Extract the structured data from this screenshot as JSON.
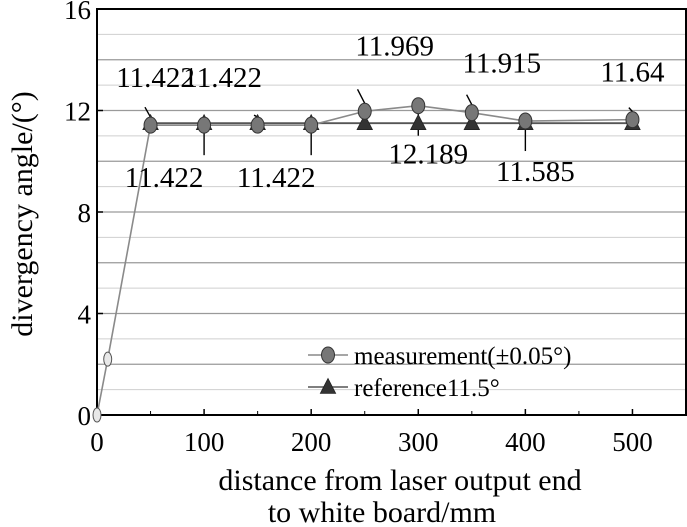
{
  "chart_data": {
    "type": "line",
    "title": "",
    "xlabel_lines": [
      "distance from laser output end",
      "to white board/mm"
    ],
    "ylabel": "divergency angle/(°)",
    "xlim": [
      0,
      550
    ],
    "ylim": [
      0,
      16
    ],
    "xticks": [
      0,
      100,
      200,
      300,
      400,
      500
    ],
    "yticks": [
      0,
      4,
      8,
      12,
      16
    ],
    "grid": "horizontal",
    "legend_position": "bottom-right",
    "series": [
      {
        "name": "measurement(±0.05°)",
        "marker": "circle",
        "color": "#777777",
        "x": [
          0,
          10,
          50,
          100,
          150,
          200,
          250,
          300,
          350,
          400,
          500
        ],
        "y": [
          0,
          2.2,
          11.422,
          11.422,
          11.422,
          11.422,
          11.969,
          12.189,
          11.915,
          11.585,
          11.64
        ]
      },
      {
        "name": "reference11.5°",
        "marker": "triangle",
        "color": "#333333",
        "x": [
          50,
          100,
          150,
          200,
          250,
          300,
          350,
          400,
          500
        ],
        "y": [
          11.5,
          11.5,
          11.5,
          11.5,
          11.5,
          11.5,
          11.5,
          11.5,
          11.5
        ]
      }
    ],
    "annotations": [
      {
        "text": "11.422",
        "x": 50,
        "y": 11.422
      },
      {
        "text": "11.422",
        "x": 100,
        "y": 11.422
      },
      {
        "text": "11.422",
        "x": 150,
        "y": 11.422
      },
      {
        "text": "11.422",
        "x": 200,
        "y": 11.422
      },
      {
        "text": "11.969",
        "x": 250,
        "y": 11.969
      },
      {
        "text": "12.189",
        "x": 300,
        "y": 12.189
      },
      {
        "text": "11.915",
        "x": 350,
        "y": 11.915
      },
      {
        "text": "11.585",
        "x": 400,
        "y": 11.585
      },
      {
        "text": "11.64",
        "x": 500,
        "y": 11.64
      }
    ]
  }
}
